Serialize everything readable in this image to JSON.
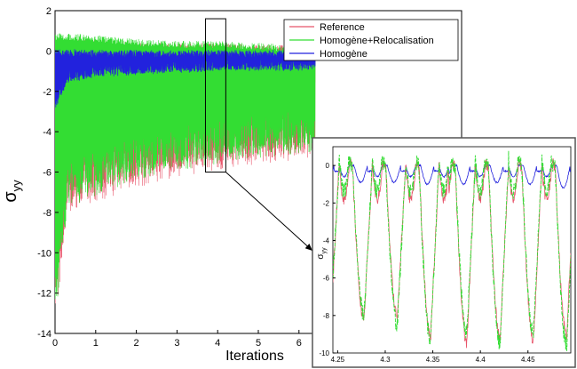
{
  "chart_data": [
    {
      "type": "line",
      "ylabel": "σ",
      "ylabel_sub": "yy",
      "xlabel": "Iterations",
      "xlim": [
        0,
        10
      ],
      "ylim": [
        -14,
        2
      ],
      "x_ticks": [
        "0",
        "1",
        "2",
        "3",
        "4",
        "5",
        "6"
      ],
      "y_ticks": [
        "2",
        "0",
        "-2",
        "-4",
        "-6",
        "-8",
        "-10",
        "-12",
        "-14"
      ],
      "legend_position": "top-right",
      "legend": [
        "Reference",
        "Homogène+Relocalisation",
        "Homogène"
      ],
      "colors": {
        "reference": "#e8556a",
        "relocalisation": "#33dd33",
        "homogene": "#2222dd"
      },
      "series": [
        {
          "name": "Reference",
          "key": "reference",
          "envelope": [
            [
              0,
              0.5,
              -14.0
            ],
            [
              0.3,
              0.6,
              -8.0
            ],
            [
              1,
              0.6,
              -7.5
            ],
            [
              2,
              0.4,
              -6.8
            ],
            [
              3,
              0.4,
              -6.3
            ],
            [
              4,
              0.4,
              -5.9
            ],
            [
              5,
              0.3,
              -5.6
            ],
            [
              6,
              0.3,
              -5.4
            ],
            [
              6.4,
              0.3,
              -5.3
            ]
          ]
        },
        {
          "name": "Homogène+Relocalisation",
          "key": "relocalisation",
          "envelope": [
            [
              0,
              0.9,
              -13.5
            ],
            [
              0.3,
              0.9,
              -7.8
            ],
            [
              1,
              0.8,
              -7.2
            ],
            [
              2,
              0.6,
              -6.5
            ],
            [
              3,
              0.5,
              -6.0
            ],
            [
              4,
              0.5,
              -5.6
            ],
            [
              5,
              0.4,
              -5.3
            ],
            [
              6,
              0.3,
              -5.1
            ],
            [
              6.4,
              0.3,
              -5.0
            ]
          ]
        },
        {
          "name": "Homogène",
          "key": "homogene",
          "envelope": [
            [
              0,
              0.1,
              -3.0
            ],
            [
              0.3,
              0.1,
              -1.6
            ],
            [
              1,
              0.05,
              -1.3
            ],
            [
              2,
              0.05,
              -1.2
            ],
            [
              3,
              0.05,
              -1.1
            ],
            [
              4,
              0.05,
              -1.0
            ],
            [
              5,
              0.05,
              -1.0
            ],
            [
              6,
              0.05,
              -1.0
            ],
            [
              6.4,
              0.05,
              -0.9
            ]
          ]
        }
      ],
      "zoom_box": {
        "x": [
          3.7,
          4.2
        ],
        "y": [
          -6,
          1.6
        ]
      }
    },
    {
      "type": "line",
      "ylabel": "σ",
      "ylabel_sub": "yy",
      "xlim": [
        4.245,
        4.495
      ],
      "ylim": [
        -10,
        1
      ],
      "x_ticks": [
        4.25,
        4.3,
        4.35,
        4.4,
        4.45
      ],
      "x_tick_labels": [
        "4.25",
        "4.3",
        "4.35",
        "4.4",
        "4.45"
      ],
      "y_ticks": [
        0,
        -2,
        -4,
        -6,
        -8,
        -10
      ],
      "y_tick_labels": [
        "0",
        "-2",
        "-4",
        "-6",
        "-8",
        "-10"
      ],
      "cycle_peaks_x": [
        4.262,
        4.297,
        4.332,
        4.37,
        4.405,
        4.44,
        4.475
      ],
      "series": [
        {
          "name": "Reference",
          "key": "reference",
          "minimums": [
            -8.2,
            -8.0,
            -9.1,
            -9.5,
            -9.2,
            -9.4,
            -9.0
          ]
        },
        {
          "name": "Homogène+Relocalisation",
          "key": "relocalisation",
          "minimums": [
            -8.0,
            -8.5,
            -9.3,
            -8.9,
            -9.5,
            -9.0,
            -9.6
          ]
        },
        {
          "name": "Homogène",
          "key": "homogene",
          "minimums": [
            -0.9,
            -0.9,
            -1.0,
            -1.0,
            -0.9,
            -1.0,
            -1.2
          ]
        }
      ]
    }
  ]
}
